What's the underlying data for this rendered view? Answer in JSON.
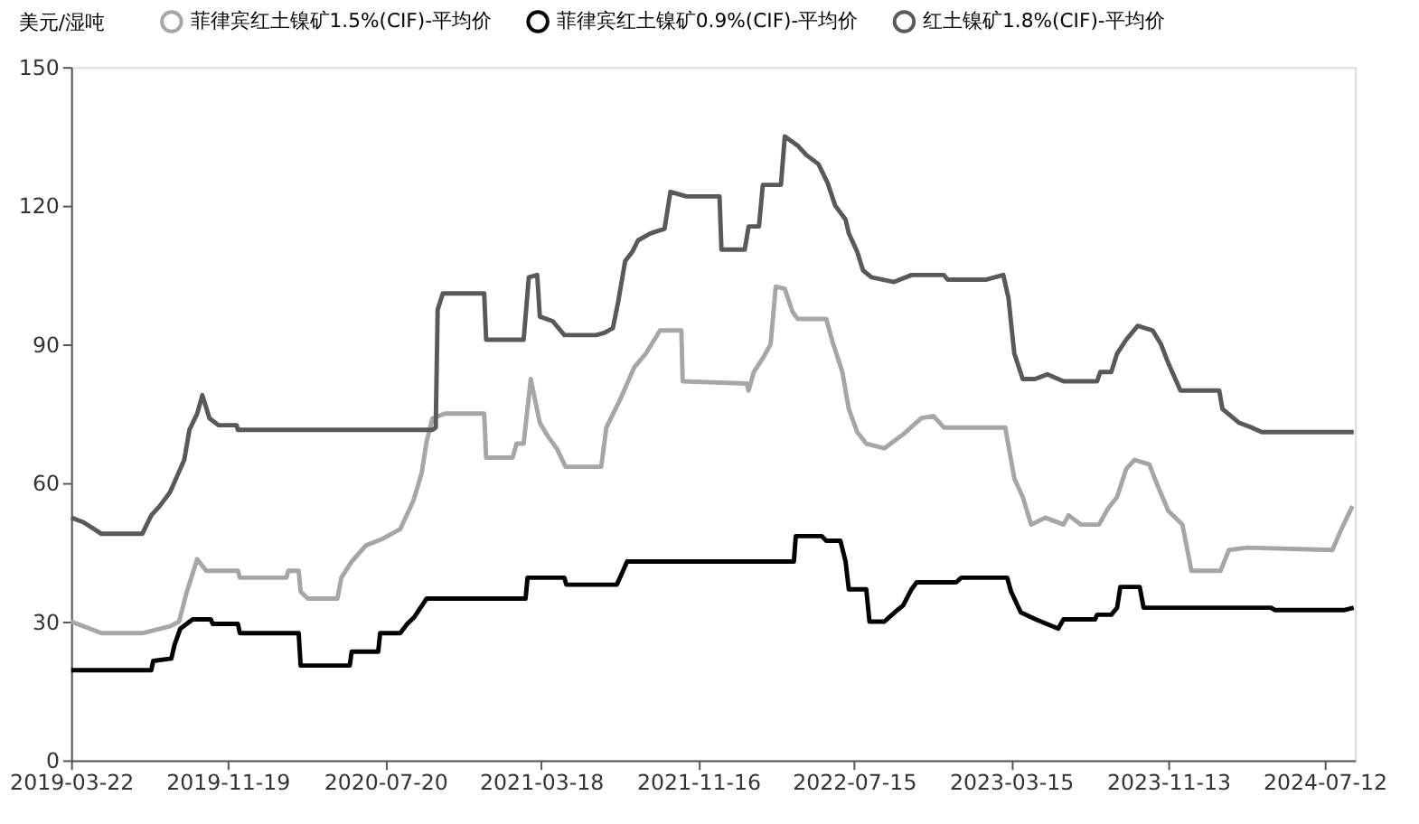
{
  "chart_data": {
    "type": "line",
    "ylabel": "美元/湿吨",
    "ylim": [
      0,
      150
    ],
    "yticks": [
      0,
      30,
      60,
      90,
      120,
      150
    ],
    "xlim": [
      "2019-03-22",
      "2024-08-28"
    ],
    "xticks": [
      "2019-03-22",
      "2019-11-19",
      "2020-07-20",
      "2021-03-18",
      "2021-11-16",
      "2022-07-15",
      "2023-03-15",
      "2023-11-13",
      "2024-07-12"
    ],
    "grid": false,
    "legend": "top",
    "marker": "none",
    "line_style": "solid",
    "series": [
      {
        "name": "菲律宾红土镍矿1.5%(CIF)-平均价",
        "color": "#a6a6a6",
        "x": [
          "2019-03-22",
          "2019-05-08",
          "2019-07-10",
          "2019-08-22",
          "2019-09-05",
          "2019-09-16",
          "2019-10-03",
          "2019-10-17",
          "2019-12-05",
          "2019-12-08",
          "2020-02-18",
          "2020-02-21",
          "2020-03-08",
          "2020-03-11",
          "2020-03-22",
          "2020-05-07",
          "2020-05-13",
          "2020-05-29",
          "2020-06-20",
          "2020-07-17",
          "2020-08-12",
          "2020-09-01",
          "2020-09-14",
          "2020-09-22",
          "2020-10-01",
          "2020-10-20",
          "2020-12-20",
          "2020-12-23",
          "2021-02-02",
          "2021-02-08",
          "2021-02-19",
          "2021-03-02",
          "2021-03-16",
          "2021-03-29",
          "2021-04-11",
          "2021-04-25",
          "2021-06-19",
          "2021-06-27",
          "2021-07-18",
          "2021-08-09",
          "2021-08-27",
          "2021-09-18",
          "2021-10-21",
          "2021-10-23",
          "2022-01-30",
          "2022-02-02",
          "2022-02-10",
          "2022-02-24",
          "2022-03-08",
          "2022-03-16",
          "2022-03-30",
          "2022-04-11",
          "2022-04-19",
          "2022-06-02",
          "2022-06-13",
          "2022-06-27",
          "2022-07-07",
          "2022-07-20",
          "2022-08-03",
          "2022-08-31",
          "2022-09-29",
          "2022-10-27",
          "2022-11-15",
          "2022-12-01",
          "2023-02-05",
          "2023-03-06",
          "2023-03-20",
          "2023-04-02",
          "2023-04-15",
          "2023-05-07",
          "2023-06-04",
          "2023-06-12",
          "2023-07-01",
          "2023-07-29",
          "2023-08-12",
          "2023-08-26",
          "2023-09-09",
          "2023-09-22",
          "2023-10-15",
          "2023-10-26",
          "2023-11-13",
          "2023-12-05",
          "2023-12-19",
          "2024-02-02",
          "2024-02-15",
          "2024-03-14",
          "2024-07-24",
          "2024-08-07",
          "2024-08-24"
        ],
        "values": [
          30,
          27.5,
          27.5,
          29,
          30,
          36,
          43.5,
          41,
          41,
          39.5,
          39.5,
          41,
          41,
          36.5,
          35,
          35,
          39.5,
          43,
          46.5,
          48,
          50,
          56,
          62,
          69,
          74,
          75,
          75,
          65.5,
          65.5,
          68.5,
          68.5,
          82.5,
          73,
          70,
          67.5,
          63.5,
          63.5,
          72,
          78,
          85,
          88,
          93,
          93,
          82,
          81.5,
          80,
          84,
          87,
          90,
          102.5,
          102,
          97,
          95.5,
          95.5,
          90,
          84,
          76,
          71,
          68.5,
          67.5,
          70.5,
          74,
          74.5,
          72,
          72,
          72,
          61,
          57,
          51,
          52.5,
          51,
          53,
          51,
          51,
          54.5,
          57,
          63,
          65,
          64,
          60,
          54,
          51,
          41,
          41,
          45.5,
          46,
          45.5,
          50,
          55
        ]
      },
      {
        "name": "菲律宾红土镍矿0.9%(CIF)-平均价",
        "color": "#000000",
        "x": [
          "2019-03-22",
          "2019-07-24",
          "2019-07-27",
          "2019-08-24",
          "2019-08-29",
          "2019-09-07",
          "2019-09-26",
          "2019-10-24",
          "2019-10-27",
          "2019-12-05",
          "2019-12-08",
          "2020-03-08",
          "2020-03-11",
          "2020-05-26",
          "2020-05-29",
          "2020-07-09",
          "2020-07-12",
          "2020-08-12",
          "2020-08-23",
          "2020-09-03",
          "2020-09-22",
          "2021-02-22",
          "2021-02-25",
          "2021-04-23",
          "2021-04-26",
          "2021-07-13",
          "2021-07-18",
          "2021-07-29",
          "2022-04-13",
          "2022-04-16",
          "2022-05-26",
          "2022-06-02",
          "2022-06-24",
          "2022-07-02",
          "2022-07-07",
          "2022-08-03",
          "2022-08-08",
          "2022-08-31",
          "2022-09-08",
          "2022-09-20",
          "2022-09-29",
          "2022-10-12",
          "2022-10-20",
          "2022-12-20",
          "2022-12-28",
          "2023-03-09",
          "2023-03-15",
          "2023-03-30",
          "2023-04-22",
          "2023-05-27",
          "2023-06-04",
          "2023-07-23",
          "2023-07-26",
          "2023-08-17",
          "2023-08-26",
          "2023-08-31",
          "2023-09-30",
          "2023-10-06",
          "2024-04-20",
          "2024-04-26",
          "2024-08-12",
          "2024-08-26"
        ],
        "values": [
          19.5,
          19.5,
          21.5,
          22,
          25,
          28.5,
          30.5,
          30.5,
          29.5,
          29.5,
          27.5,
          27.5,
          20.5,
          20.5,
          23.5,
          23.5,
          27.5,
          27.5,
          29.5,
          31,
          35,
          35,
          39.5,
          39.5,
          38,
          38,
          39.5,
          43,
          43,
          48.5,
          48.5,
          47.5,
          47.5,
          43,
          37,
          37,
          30,
          30,
          31,
          32.5,
          33.5,
          37,
          38.5,
          38.5,
          39.5,
          39.5,
          36.5,
          32,
          30.5,
          28.5,
          30.5,
          30.5,
          31.5,
          31.5,
          33,
          37.5,
          37.5,
          33,
          33,
          32.5,
          32.5,
          33
        ]
      },
      {
        "name": "红土镍矿1.8%(CIF)-平均价",
        "color": "#595959",
        "x": [
          "2019-03-22",
          "2019-04-10",
          "2019-05-08",
          "2019-07-10",
          "2019-07-24",
          "2019-08-06",
          "2019-08-22",
          "2019-09-02",
          "2019-09-13",
          "2019-09-21",
          "2019-10-03",
          "2019-10-11",
          "2019-10-22",
          "2019-11-05",
          "2019-12-03",
          "2019-12-05",
          "2020-10-01",
          "2020-10-06",
          "2020-10-09",
          "2020-10-17",
          "2020-12-20",
          "2020-12-23",
          "2021-02-19",
          "2021-02-27",
          "2021-03-12",
          "2021-03-16",
          "2021-04-05",
          "2021-04-23",
          "2021-06-11",
          "2021-06-24",
          "2021-07-07",
          "2021-07-15",
          "2021-07-26",
          "2021-08-06",
          "2021-08-15",
          "2021-09-03",
          "2021-09-25",
          "2021-10-04",
          "2021-10-29",
          "2021-12-19",
          "2021-12-22",
          "2022-01-27",
          "2022-02-02",
          "2022-02-18",
          "2022-02-24",
          "2022-03-24",
          "2022-03-30",
          "2022-04-19",
          "2022-05-02",
          "2022-05-21",
          "2022-06-04",
          "2022-06-16",
          "2022-07-02",
          "2022-07-07",
          "2022-07-20",
          "2022-07-29",
          "2022-08-11",
          "2022-09-15",
          "2022-10-12",
          "2022-12-01",
          "2022-12-07",
          "2023-02-05",
          "2023-03-03",
          "2023-03-11",
          "2023-03-20",
          "2023-04-02",
          "2023-04-21",
          "2023-05-10",
          "2023-06-04",
          "2023-07-26",
          "2023-07-31",
          "2023-08-17",
          "2023-08-26",
          "2023-09-09",
          "2023-09-27",
          "2023-10-20",
          "2023-11-02",
          "2023-11-13",
          "2023-12-02",
          "2024-01-31",
          "2024-02-05",
          "2024-03-02",
          "2024-03-21",
          "2024-04-06",
          "2024-08-26"
        ],
        "values": [
          52.5,
          51.5,
          49,
          49,
          53,
          55,
          58,
          61.5,
          65,
          71.5,
          75,
          79,
          74,
          72.5,
          72.5,
          71.5,
          71.5,
          72,
          97.5,
          101,
          101,
          91,
          91,
          104.5,
          105,
          96,
          95,
          92,
          92,
          92.5,
          93.5,
          99,
          108,
          110,
          112.5,
          114,
          115,
          123,
          122,
          122,
          110.5,
          110.5,
          115.5,
          115.5,
          124.5,
          124.5,
          135,
          133,
          131,
          129,
          125,
          120,
          117,
          114,
          110,
          106,
          104.5,
          103.5,
          105,
          105,
          104,
          104,
          105,
          100,
          88,
          82.5,
          82.5,
          83.5,
          82,
          82,
          84,
          84,
          88,
          91,
          94,
          93,
          90,
          86,
          80,
          80,
          76,
          73,
          72,
          71,
          71
        ]
      }
    ]
  }
}
